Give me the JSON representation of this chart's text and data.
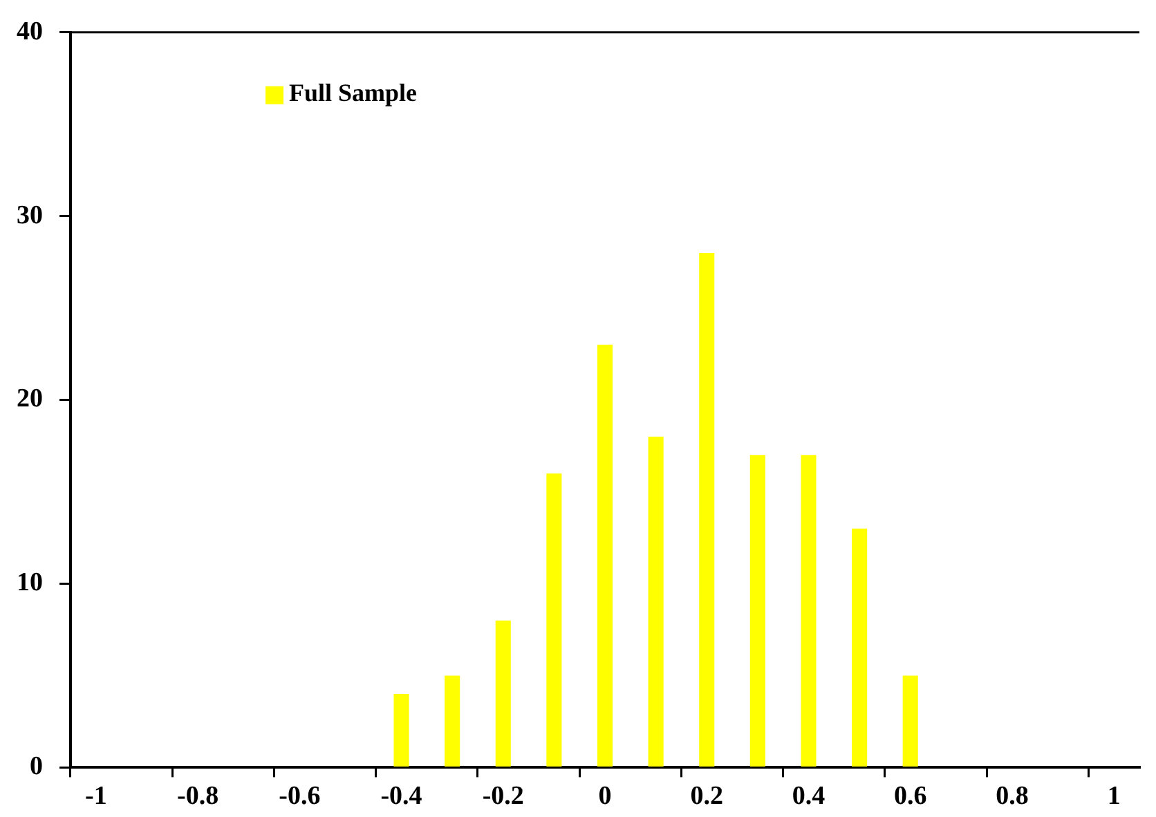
{
  "chart_data": {
    "type": "bar",
    "categories": [
      "-1",
      null,
      "-0.8",
      null,
      "-0.6",
      null,
      "-0.4",
      null,
      "-0.2",
      null,
      "0",
      null,
      "0.2",
      null,
      "0.4",
      null,
      "0.6",
      null,
      "0.8",
      null,
      "1"
    ],
    "series": [
      {
        "name": "Full Sample",
        "color": "#ffff00",
        "values": [
          0,
          0,
          0,
          0,
          0,
          0,
          4,
          5,
          8,
          16,
          23,
          18,
          28,
          17,
          17,
          13,
          5,
          0,
          0,
          0,
          0
        ]
      }
    ],
    "ylim": [
      0,
      40
    ],
    "yticks": [
      0,
      10,
      20,
      30,
      40
    ],
    "grid": false,
    "legend": "top left"
  }
}
